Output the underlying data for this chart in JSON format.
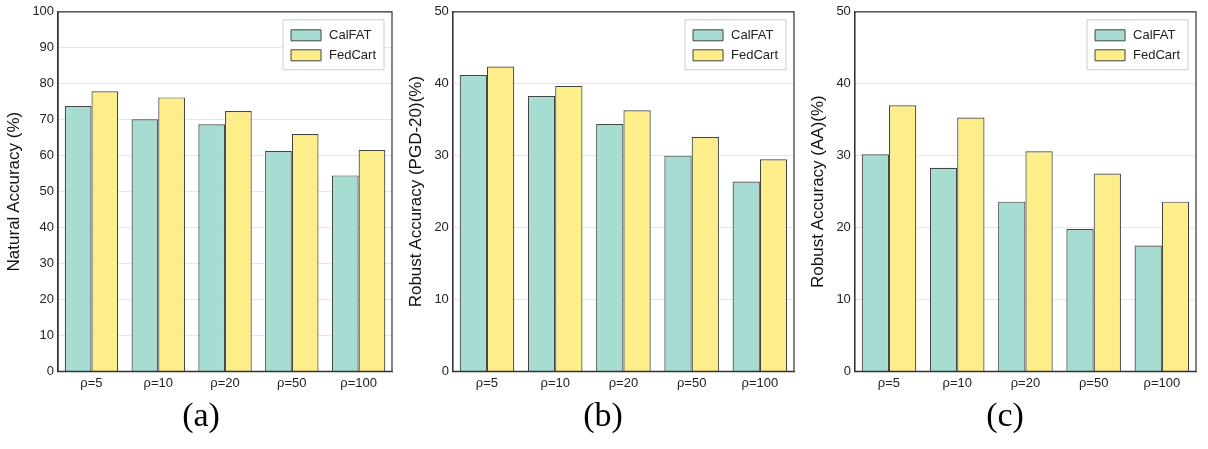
{
  "chart_data": [
    {
      "type": "bar",
      "ylabel": "Natural Accuracy (%)",
      "categories": [
        "ρ=5",
        "ρ=10",
        "ρ=20",
        "ρ=50",
        "ρ=100"
      ],
      "series": [
        {
          "name": "CalFAT",
          "color": "#a6dcd2",
          "values": [
            73.8,
            70.1,
            68.7,
            61.3,
            54.5
          ]
        },
        {
          "name": "FedCart",
          "color": "#fdee8a",
          "values": [
            77.9,
            76.2,
            72.4,
            66.0,
            61.6
          ]
        }
      ],
      "ylim": [
        0,
        100
      ],
      "yticks": [
        0,
        10,
        20,
        30,
        40,
        50,
        60,
        70,
        80,
        90,
        100
      ],
      "grid": "y",
      "legend": "top right",
      "annotations": [
        "(a)"
      ]
    },
    {
      "type": "bar",
      "ylabel": "Robust Accuracy (PGD-20)(%)",
      "categories": [
        "ρ=5",
        "ρ=10",
        "ρ=20",
        "ρ=50",
        "ρ=100"
      ],
      "series": [
        {
          "name": "CalFAT",
          "color": "#a6dcd2",
          "values": [
            41.2,
            38.3,
            34.4,
            30.0,
            26.4
          ]
        },
        {
          "name": "FedCart",
          "color": "#fdee8a",
          "values": [
            42.4,
            39.7,
            36.3,
            32.6,
            29.5
          ]
        }
      ],
      "ylim": [
        0,
        50
      ],
      "yticks": [
        0,
        10,
        20,
        30,
        40,
        50
      ],
      "grid": "y",
      "legend": "top right",
      "annotations": [
        "(b)"
      ]
    },
    {
      "type": "bar",
      "ylabel": "Robust Accuracy (AA)(%)",
      "categories": [
        "ρ=5",
        "ρ=10",
        "ρ=20",
        "ρ=50",
        "ρ=100"
      ],
      "series": [
        {
          "name": "CalFAT",
          "color": "#a6dcd2",
          "values": [
            30.2,
            28.3,
            23.6,
            19.8,
            17.5
          ]
        },
        {
          "name": "FedCart",
          "color": "#fdee8a",
          "values": [
            37.0,
            35.3,
            30.6,
            27.5,
            23.6
          ]
        }
      ],
      "ylim": [
        0,
        50
      ],
      "yticks": [
        0,
        10,
        20,
        30,
        40,
        50
      ],
      "grid": "y",
      "legend": "top right",
      "annotations": [
        "(c)"
      ]
    }
  ]
}
